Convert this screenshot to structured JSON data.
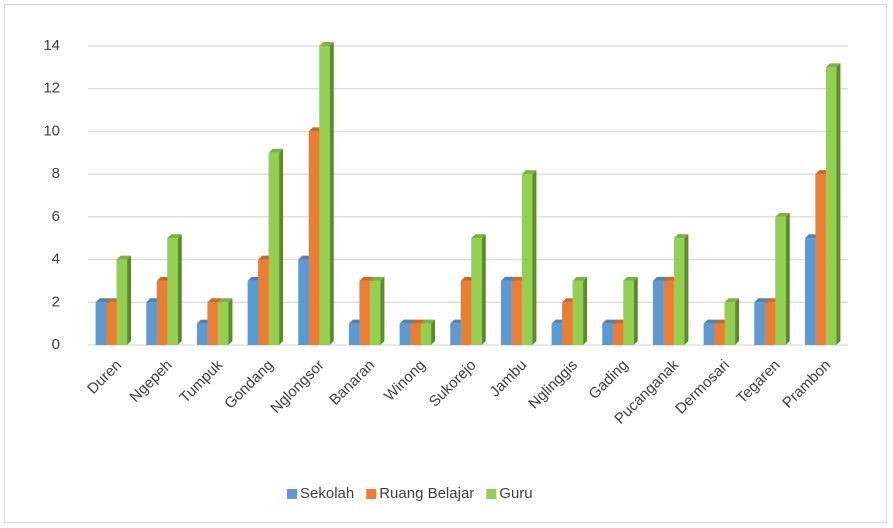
{
  "chart_data": {
    "type": "bar",
    "categories": [
      "Duren",
      "Ngepeh",
      "Tumpuk",
      "Gondang",
      "Nglongsor",
      "Banaran",
      "Winong",
      "Sukorejo",
      "Jambu",
      "Nglinggis",
      "Gading",
      "Pucanganak",
      "Dermosari",
      "Tegaren",
      "Prambon"
    ],
    "series": [
      {
        "name": "Sekolah",
        "color": "#5b9bd5",
        "values": [
          2,
          2,
          1,
          3,
          4,
          1,
          1,
          1,
          3,
          1,
          1,
          3,
          1,
          2,
          5
        ]
      },
      {
        "name": "Ruang Belajar",
        "color": "#ed7d31",
        "values": [
          2,
          3,
          2,
          4,
          10,
          3,
          1,
          3,
          3,
          2,
          1,
          3,
          1,
          2,
          8
        ]
      },
      {
        "name": "Guru",
        "color": "#92d050",
        "values": [
          4,
          5,
          2,
          9,
          14,
          3,
          1,
          5,
          8,
          3,
          3,
          5,
          2,
          6,
          13
        ]
      }
    ],
    "ylim": [
      0,
      14
    ],
    "yticks": [
      0,
      2,
      4,
      6,
      8,
      10,
      12,
      14
    ],
    "grid": true,
    "legend": "bottom"
  }
}
